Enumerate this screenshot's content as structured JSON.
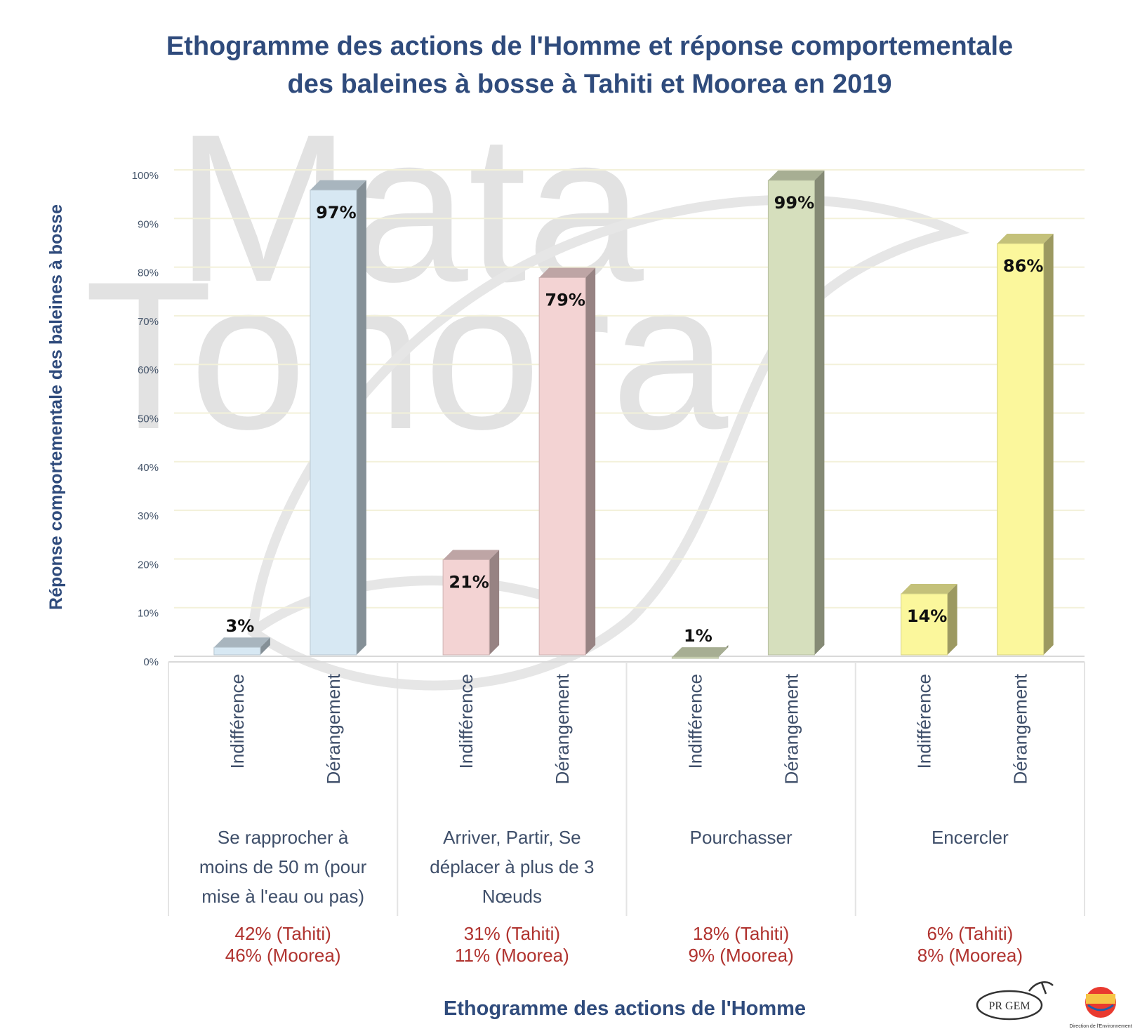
{
  "title_lines": [
    "Ethogramme des actions de l'Homme et réponse comportementale",
    "des baleines à bosse à Tahiti et Moorea en 2019"
  ],
  "watermark": [
    "Mata",
    "Tohora"
  ],
  "logos": {
    "progem": "PR GEM",
    "direction": "Direction de l'Environnement"
  },
  "chart_data": {
    "type": "bar",
    "title": "Ethogramme des actions de l'Homme et réponse comportementale des baleines à bosse à Tahiti et Moorea en 2019",
    "ylabel": "Réponse comportementale des baleines à bosse",
    "xlabel": "Ethogramme des actions de l'Homme",
    "ylim": [
      0,
      100
    ],
    "yticks": [
      0,
      10,
      20,
      30,
      40,
      50,
      60,
      70,
      80,
      90,
      100
    ],
    "ytick_labels": [
      "0%",
      "10%",
      "20%",
      "30%",
      "40%",
      "50%",
      "60%",
      "70%",
      "80%",
      "90%",
      "100%"
    ],
    "grid": true,
    "groups": [
      {
        "label_lines": [
          "Se rapprocher à",
          "moins de 50 m (pour",
          "mise à l'eau ou pas)"
        ],
        "stat_lines": [
          "42% (Tahiti)",
          "46% (Moorea)"
        ],
        "color": "#d7e8f3",
        "bars": [
          {
            "category": "Indifférence",
            "value": 3,
            "label": "3%"
          },
          {
            "category": "Dérangement",
            "value": 97,
            "label": "97%"
          }
        ]
      },
      {
        "label_lines": [
          "Arriver, Partir, Se",
          "déplacer à plus de 3",
          "Nœuds"
        ],
        "stat_lines": [
          "31% (Tahiti)",
          "11% (Moorea)"
        ],
        "color": "#f3d3d3",
        "bars": [
          {
            "category": "Indifférence",
            "value": 21,
            "label": "21%"
          },
          {
            "category": "Dérangement",
            "value": 79,
            "label": "79%"
          }
        ]
      },
      {
        "label_lines": [
          "Pourchasser"
        ],
        "stat_lines": [
          "18% (Tahiti)",
          "9% (Moorea)"
        ],
        "color": "#d6dfbd",
        "bars": [
          {
            "category": "Indifférence",
            "value": 1,
            "label": "1%"
          },
          {
            "category": "Dérangement",
            "value": 99,
            "label": "99%"
          }
        ]
      },
      {
        "label_lines": [
          "Encercler"
        ],
        "stat_lines": [
          "6% (Tahiti)",
          "8% (Moorea)"
        ],
        "color": "#fbf79c",
        "bars": [
          {
            "category": "Indifférence",
            "value": 14,
            "label": "14%"
          },
          {
            "category": "Dérangement",
            "value": 86,
            "label": "86%"
          }
        ]
      }
    ]
  }
}
